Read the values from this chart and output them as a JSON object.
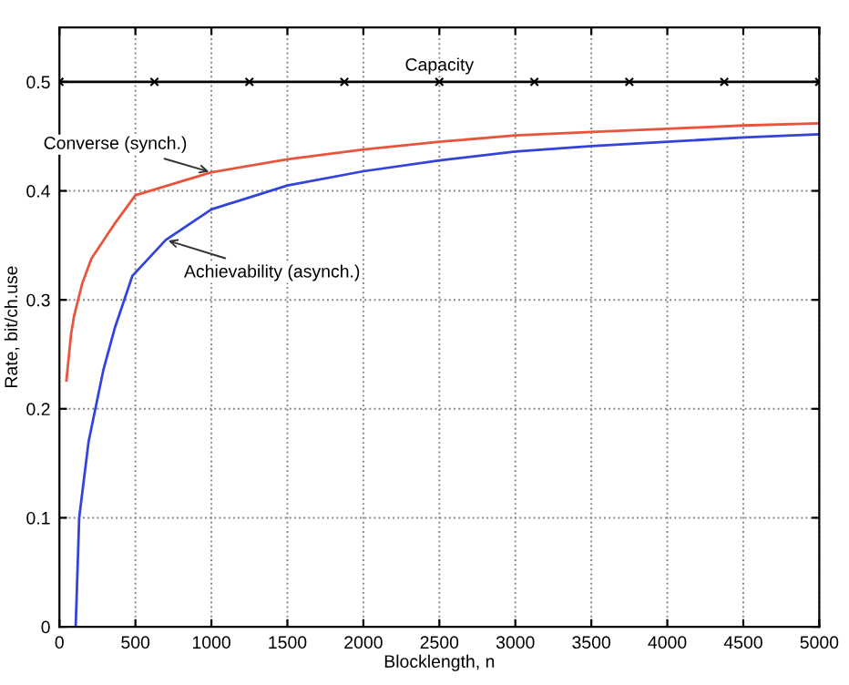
{
  "chart_data": {
    "type": "line",
    "xlabel": "Blocklength, n",
    "ylabel": "Rate, bit/ch.use",
    "xlim": [
      0,
      5000
    ],
    "ylim": [
      0,
      0.55
    ],
    "xticks": [
      0,
      500,
      1000,
      1500,
      2000,
      2500,
      3000,
      3500,
      4000,
      4500,
      5000
    ],
    "yticks": [
      0,
      0.1,
      0.2,
      0.3,
      0.4,
      0.5
    ],
    "grid": true,
    "line_style": "solid",
    "series": [
      {
        "name": "Capacity",
        "color": "#000000",
        "marker": "cross",
        "x": [
          0,
          625,
          1250,
          1875,
          2500,
          3125,
          3750,
          4375,
          5000
        ],
        "values": [
          0.5,
          0.5,
          0.5,
          0.5,
          0.5,
          0.5,
          0.5,
          0.5,
          0.5
        ]
      },
      {
        "name": "Converse (synch.)",
        "color": "#e8543c",
        "marker": "none",
        "x": [
          46,
          77,
          96,
          150,
          211,
          364,
          500,
          1000,
          1500,
          2000,
          2500,
          3000,
          3500,
          4000,
          4500,
          5000
        ],
        "values": [
          0.226,
          0.269,
          0.285,
          0.315,
          0.338,
          0.37,
          0.396,
          0.417,
          0.429,
          0.438,
          0.445,
          0.451,
          0.454,
          0.457,
          0.46,
          0.462
        ]
      },
      {
        "name": "Achievability (asynch.)",
        "color": "#3344dd",
        "marker": "none",
        "x": [
          107,
          130,
          192,
          288,
          364,
          480,
          700,
          1000,
          1500,
          2000,
          2500,
          3000,
          3500,
          4000,
          4500,
          5000
        ],
        "values": [
          0,
          0.1,
          0.17,
          0.235,
          0.274,
          0.322,
          0.355,
          0.383,
          0.405,
          0.418,
          0.428,
          0.436,
          0.441,
          0.445,
          0.449,
          0.452
        ]
      }
    ]
  }
}
